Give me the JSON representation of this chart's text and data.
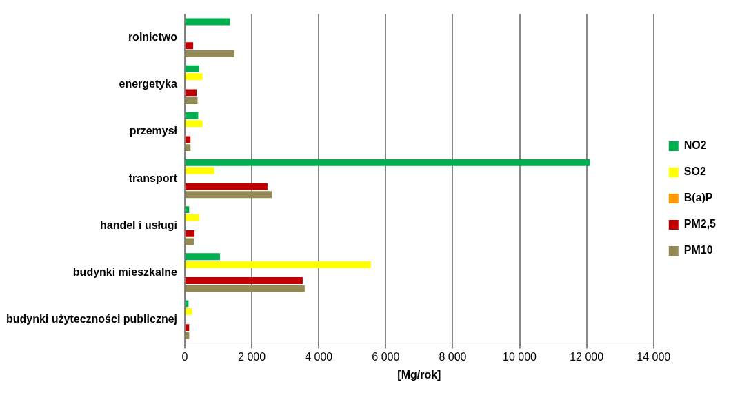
{
  "chart_data": {
    "type": "bar",
    "orientation": "horizontal",
    "xlabel": "[Mg/rok]",
    "categories": [
      "rolnictwo",
      "energetyka",
      "przemysł",
      "transport",
      "handel i usługi",
      "budynki mieszkalne",
      "budynki użyteczności publicznej"
    ],
    "series": [
      {
        "name": "NO2",
        "color": "#00b050",
        "values": [
          1350,
          430,
          400,
          12100,
          130,
          1050,
          110
        ]
      },
      {
        "name": "SO2",
        "color": "#ffff00",
        "values": [
          0,
          530,
          530,
          880,
          430,
          5560,
          220
        ]
      },
      {
        "name": "B(a)P",
        "color": "#ff9900",
        "values": [
          0,
          0,
          0,
          0,
          0,
          0,
          0
        ]
      },
      {
        "name": "PM2,5",
        "color": "#c00000",
        "values": [
          250,
          350,
          170,
          2470,
          290,
          3520,
          130
        ]
      },
      {
        "name": "PM10",
        "color": "#948a54",
        "values": [
          1480,
          380,
          170,
          2600,
          270,
          3580,
          130
        ]
      }
    ],
    "xlim": [
      0,
      14000
    ],
    "xticks": [
      0,
      {
        "value": 2000,
        "label": "2 000"
      },
      {
        "value": 4000,
        "label": "4 000"
      },
      {
        "value": 6000,
        "label": "6 000"
      },
      {
        "value": 8000,
        "label": "8 000"
      },
      {
        "value": 10000,
        "label": "10 000"
      },
      {
        "value": 12000,
        "label": "12 000"
      },
      {
        "value": 14000,
        "label": "14 000"
      }
    ],
    "grid": "x",
    "legend": "right"
  }
}
